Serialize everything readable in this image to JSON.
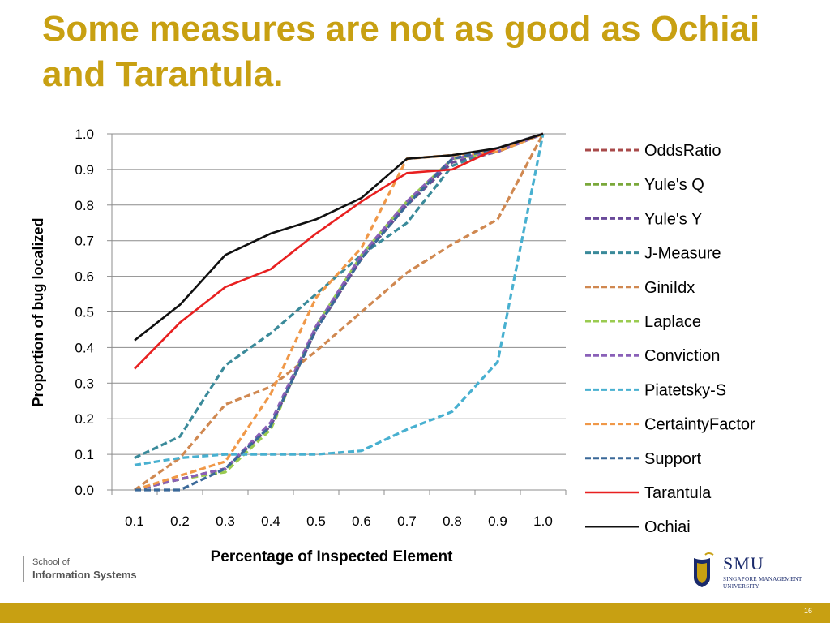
{
  "slide": {
    "title": "Some measures are not as good as Ochiai and Tarantula.",
    "footer_line1": "School of",
    "footer_line2": "Information Systems",
    "logo_text": "SMU",
    "logo_subtext_1": "SINGAPORE MANAGEMENT",
    "logo_subtext_2": "UNIVERSITY",
    "page_number": "16",
    "accent_color": "#c8a012"
  },
  "chart_data": {
    "type": "line",
    "xlabel": "Percentage of Inspected Element",
    "ylabel": "Proportion of bug localized",
    "categories": [
      "0.1",
      "0.2",
      "0.3",
      "0.4",
      "0.5",
      "0.6",
      "0.7",
      "0.8",
      "0.9",
      "1.0"
    ],
    "yticks": [
      "0.0",
      "0.1",
      "0.2",
      "0.3",
      "0.4",
      "0.5",
      "0.6",
      "0.7",
      "0.8",
      "0.9",
      "1.0"
    ],
    "ylim": [
      0,
      1
    ],
    "grid": "horizontal",
    "legend_position": "right",
    "series": [
      {
        "name": "OddsRatio",
        "color": "#a84a4a",
        "dash": true,
        "values": [
          0.0,
          0.03,
          0.06,
          0.18,
          0.45,
          0.65,
          0.8,
          0.92,
          0.95,
          1.0
        ]
      },
      {
        "name": "Yule's Q",
        "color": "#7aa83a",
        "dash": true,
        "values": [
          0.0,
          0.03,
          0.06,
          0.18,
          0.45,
          0.65,
          0.8,
          0.92,
          0.95,
          1.0
        ]
      },
      {
        "name": "Yule's Y",
        "color": "#6a4a9a",
        "dash": true,
        "values": [
          0.0,
          0.03,
          0.06,
          0.18,
          0.45,
          0.65,
          0.8,
          0.92,
          0.95,
          1.0
        ]
      },
      {
        "name": "J-Measure",
        "color": "#3a8a9a",
        "dash": true,
        "values": [
          0.09,
          0.15,
          0.35,
          0.44,
          0.55,
          0.66,
          0.75,
          0.91,
          0.96,
          1.0
        ]
      },
      {
        "name": "GiniIdx",
        "color": "#d08850",
        "dash": true,
        "values": [
          0.0,
          0.09,
          0.24,
          0.29,
          0.39,
          0.5,
          0.61,
          0.69,
          0.76,
          1.0
        ]
      },
      {
        "name": "Laplace",
        "color": "#9acb50",
        "dash": true,
        "values": [
          0.0,
          0.03,
          0.05,
          0.17,
          0.46,
          0.66,
          0.81,
          0.93,
          0.95,
          1.0
        ]
      },
      {
        "name": "Conviction",
        "color": "#8a60b8",
        "dash": true,
        "values": [
          0.0,
          0.03,
          0.06,
          0.19,
          0.46,
          0.66,
          0.81,
          0.93,
          0.95,
          1.0
        ]
      },
      {
        "name": "Piatetsky-S",
        "color": "#48b0d0",
        "dash": true,
        "values": [
          0.07,
          0.09,
          0.1,
          0.1,
          0.1,
          0.11,
          0.17,
          0.22,
          0.36,
          1.0
        ]
      },
      {
        "name": "CertaintyFactor",
        "color": "#f09848",
        "dash": true,
        "values": [
          0.0,
          0.04,
          0.08,
          0.27,
          0.54,
          0.68,
          0.93,
          0.94,
          0.95,
          1.0
        ]
      },
      {
        "name": "Support",
        "color": "#3a6898",
        "dash": true,
        "values": [
          0.0,
          0.0,
          0.06,
          0.18,
          0.45,
          0.65,
          0.8,
          0.93,
          0.96,
          1.0
        ]
      },
      {
        "name": "Tarantula",
        "color": "#e82020",
        "dash": false,
        "values": [
          0.34,
          0.47,
          0.57,
          0.62,
          0.72,
          0.81,
          0.89,
          0.9,
          0.96,
          1.0
        ]
      },
      {
        "name": "Ochiai",
        "color": "#101010",
        "dash": false,
        "values": [
          0.42,
          0.52,
          0.66,
          0.72,
          0.76,
          0.82,
          0.93,
          0.94,
          0.96,
          1.0
        ]
      }
    ]
  }
}
